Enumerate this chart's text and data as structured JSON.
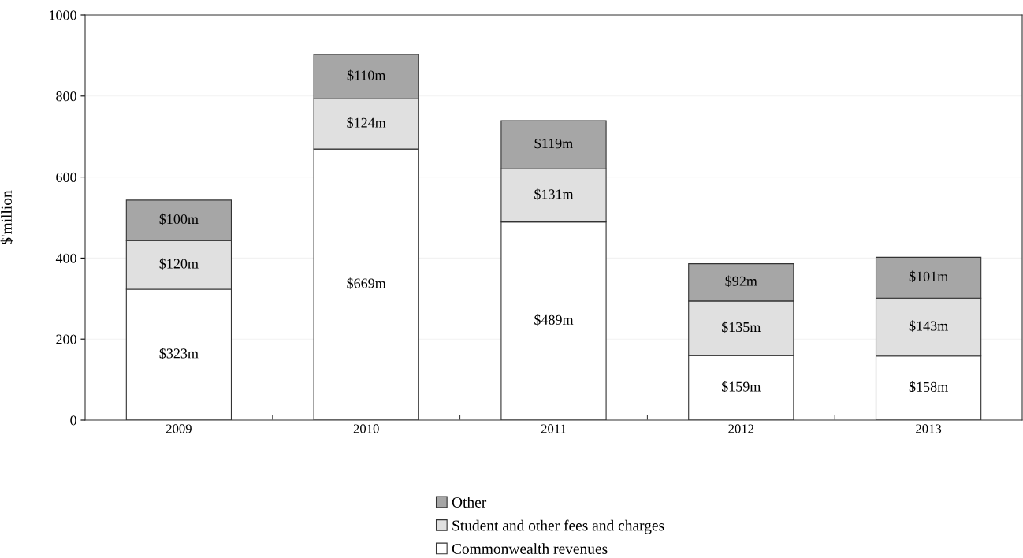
{
  "chart_data": {
    "type": "bar",
    "stacked": true,
    "ylabel": "$'million",
    "categories": [
      "2009",
      "2010",
      "2011",
      "2012",
      "2013"
    ],
    "series": [
      {
        "name": "Commonwealth revenues",
        "color": "#ffffff",
        "values": [
          323,
          669,
          489,
          159,
          158
        ],
        "value_labels": [
          "$323m",
          "$669m",
          "$489m",
          "$159m",
          "$158m"
        ]
      },
      {
        "name": "Student and other fees and charges",
        "color": "#e0e0e0",
        "values": [
          120,
          124,
          131,
          135,
          143
        ],
        "value_labels": [
          "$120m",
          "$124m",
          "$131m",
          "$135m",
          "$143m"
        ]
      },
      {
        "name": "Other",
        "color": "#a6a6a6",
        "values": [
          100,
          110,
          119,
          92,
          101
        ],
        "value_labels": [
          "$100m",
          "$110m",
          "$119m",
          "$92m",
          "$101m"
        ]
      }
    ],
    "ylim": [
      0,
      1000
    ],
    "yticks": [
      0,
      200,
      400,
      600,
      800,
      1000
    ],
    "grid": "y",
    "legend": "bottom"
  }
}
